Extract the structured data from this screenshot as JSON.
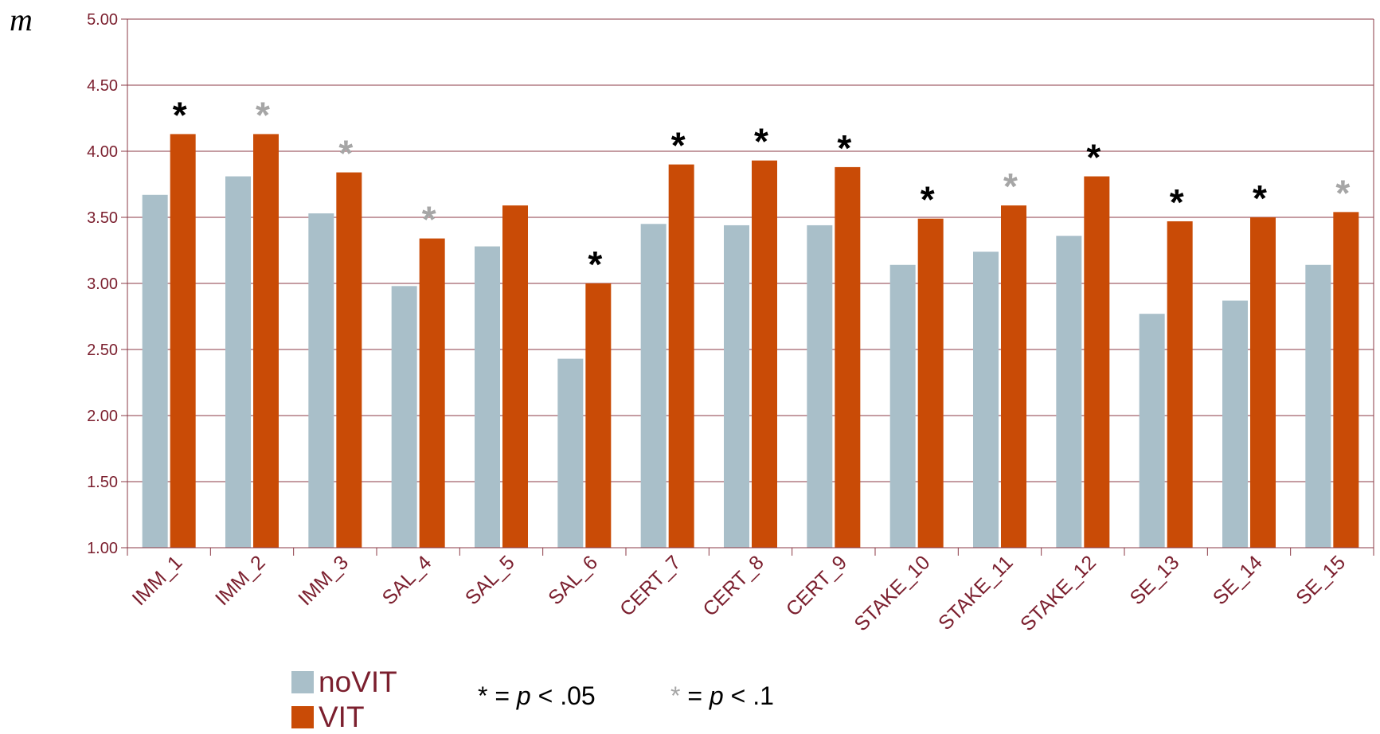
{
  "chart_data": {
    "type": "bar",
    "ylabel": "m",
    "xlabel": "",
    "title": "",
    "ylim": [
      1.0,
      5.0
    ],
    "ytick_step": 0.5,
    "grid": true,
    "categories": [
      "IMM_1",
      "IMM_2",
      "IMM_3",
      "SAL_4",
      "SAL_5",
      "SAL_6",
      "CERT_7",
      "CERT_8",
      "CERT_9",
      "STAKE_10",
      "STAKE_11",
      "STAKE_12",
      "SE_13",
      "SE_14",
      "SE_15"
    ],
    "series": [
      {
        "name": "noVIT",
        "color": "#a9bfc9",
        "values": [
          3.67,
          3.81,
          3.53,
          2.98,
          3.28,
          2.43,
          3.45,
          3.44,
          3.44,
          3.14,
          3.24,
          3.36,
          2.77,
          2.87,
          3.14
        ]
      },
      {
        "name": "VIT",
        "color": "#c94b06",
        "values": [
          4.13,
          4.13,
          3.84,
          3.34,
          3.59,
          3.0,
          3.9,
          3.93,
          3.88,
          3.49,
          3.59,
          3.81,
          3.47,
          3.5,
          3.54
        ]
      }
    ],
    "significance": [
      "p05",
      "p10",
      "p10",
      "p10",
      "",
      "p05",
      "p05",
      "p05",
      "p05",
      "p05",
      "p10",
      "p05",
      "p05",
      "p05",
      "p10"
    ],
    "significance_colors": {
      "p05": "#000000",
      "p10": "#a6a6a6"
    },
    "significance_marker": "*",
    "axis_color": "#7b1f2e",
    "grid_color": "#8b3a45"
  },
  "legend": {
    "novit_label": "noVIT",
    "vit_label": "VIT",
    "note_p05": {
      "star": "*",
      "text_pre": " = ",
      "p": "p",
      "text_post": " < .05"
    },
    "note_p10": {
      "star": "*",
      "text_pre": " = ",
      "p": "p",
      "text_post": " < .1"
    }
  }
}
